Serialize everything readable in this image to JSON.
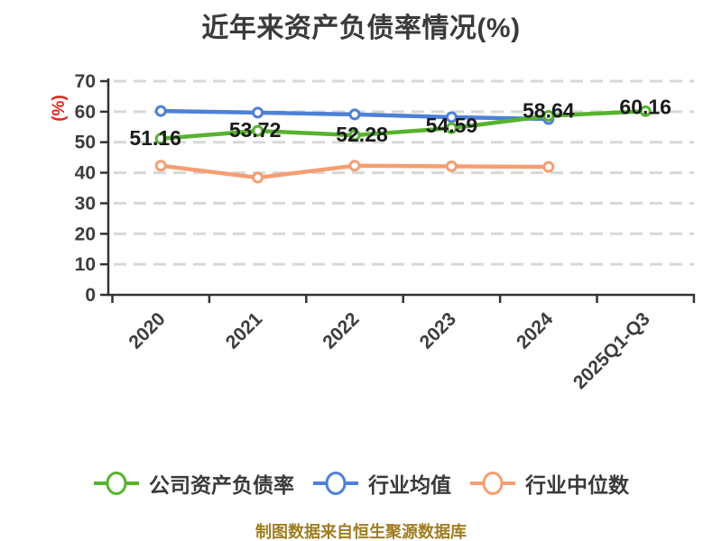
{
  "title": "近年来资产负债率情况(%)",
  "unit_label": "(%)",
  "caption": "制图数据来自恒生聚源数据库",
  "colors": {
    "background": "#ffffff",
    "title_text": "#3a3a3a",
    "axis": "#333333",
    "grid": "#d8d8d8",
    "tick_text": "#3d3d3d",
    "value_label_text": "#1a1a1a",
    "unit_text": "#e3231a",
    "caption_text": "#9f7d22",
    "legend_text": "#3a3a3a",
    "marker_fill": "#ffffff",
    "series_green": "#56b32e",
    "series_blue": "#4d80d8",
    "series_orange": "#f59e72"
  },
  "legend": {
    "items": [
      {
        "label": "公司资产负债率",
        "color": "#56b32e"
      },
      {
        "label": "行业均值",
        "color": "#4d80d8"
      },
      {
        "label": "行业中位数",
        "color": "#f59e72"
      }
    ]
  },
  "chart_data": {
    "type": "line",
    "title": "近年来资产负债率情况(%)",
    "categories": [
      "2020",
      "2021",
      "2022",
      "2023",
      "2024",
      "2025Q1-Q3"
    ],
    "series": [
      {
        "name": "公司资产负债率",
        "color": "#56b32e",
        "values": [
          51.16,
          53.72,
          52.28,
          54.59,
          58.64,
          60.16
        ],
        "point_labels": [
          "51.16",
          "53.72",
          "52.28",
          "54.59",
          "58.64",
          "60.16"
        ]
      },
      {
        "name": "行业均值",
        "color": "#4d80d8",
        "values": [
          60.2,
          59.7,
          59.1,
          58.2,
          57.6,
          null
        ],
        "point_labels": []
      },
      {
        "name": "行业中位数",
        "color": "#f59e72",
        "values": [
          42.3,
          38.4,
          42.3,
          42.1,
          41.9,
          null
        ],
        "point_labels": []
      }
    ],
    "ylim": [
      0,
      70
    ],
    "yticks": [
      0,
      10,
      20,
      30,
      40,
      50,
      60,
      70
    ],
    "ylabel": "(%)",
    "xlabel": "",
    "grid": "horizontal-dashed",
    "legend_position": "bottom",
    "x_tick_rotation_deg": 45
  }
}
